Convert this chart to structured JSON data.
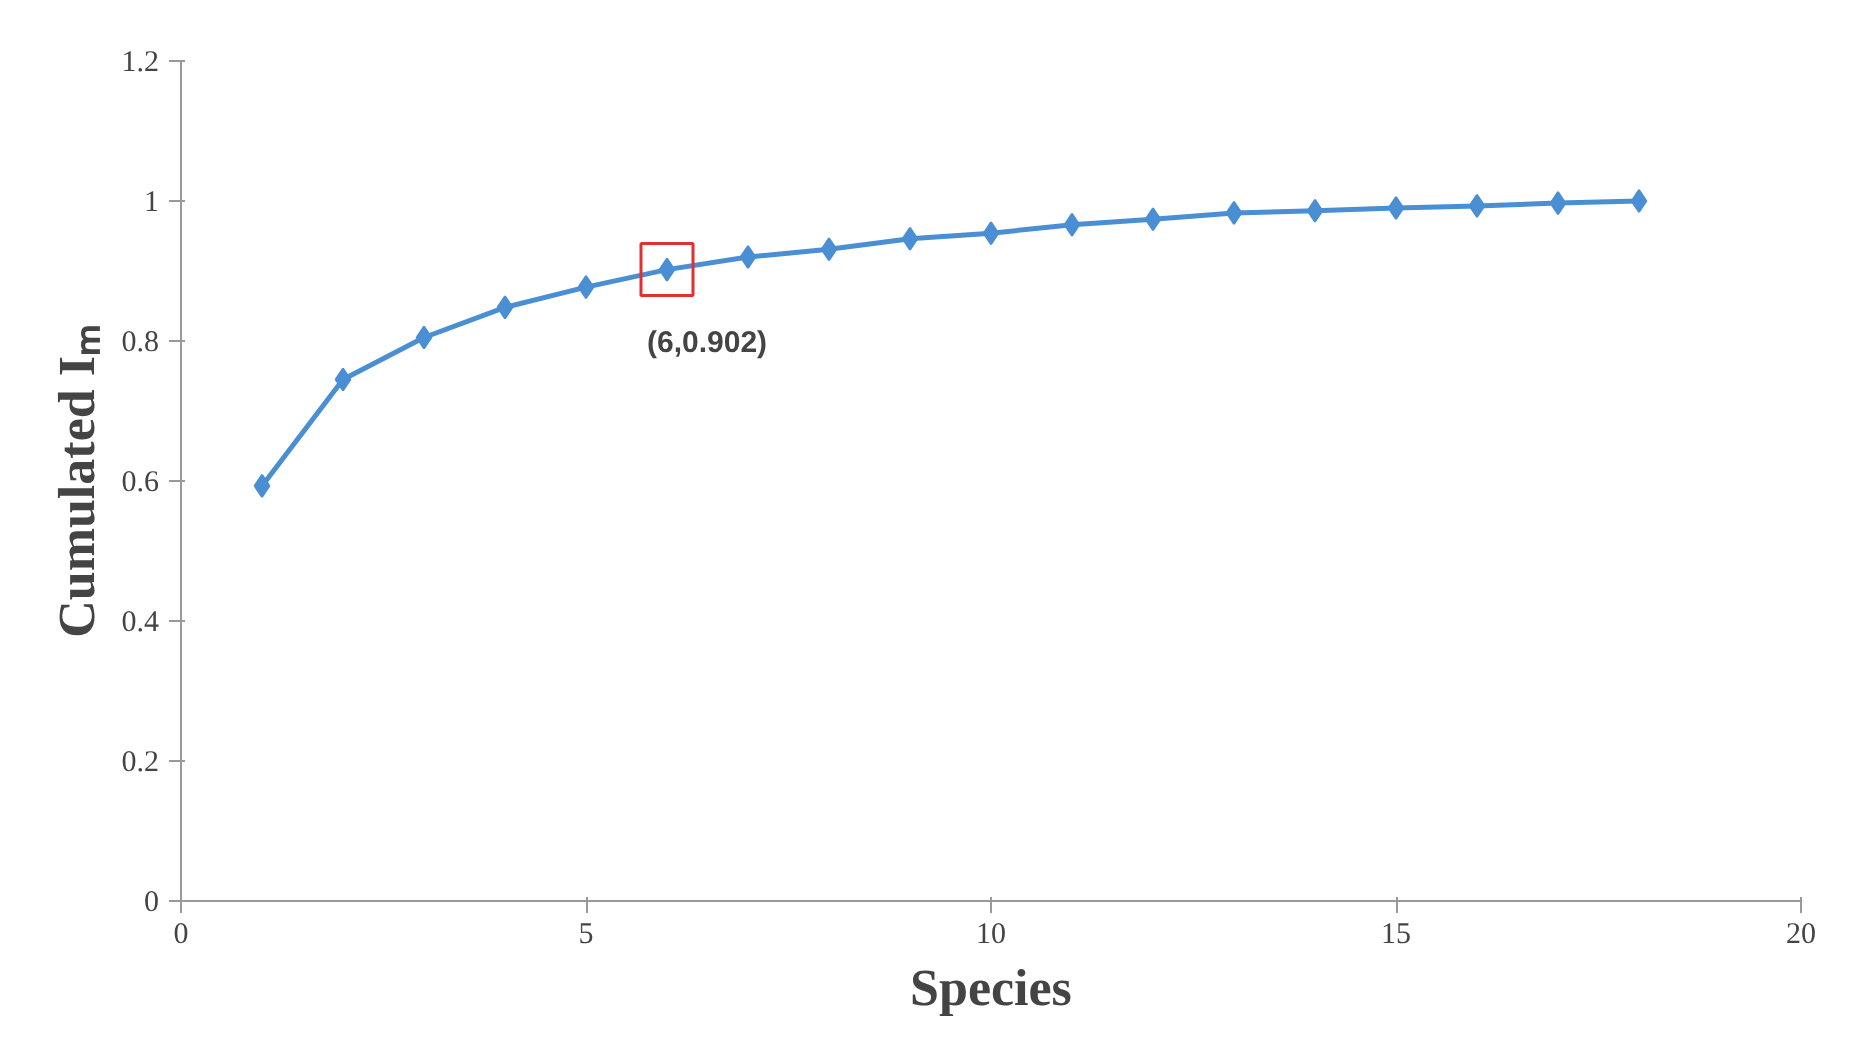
{
  "chart_data": {
    "type": "line",
    "xlabel": "Species",
    "ylabel": "Cumulated Iₘ",
    "x": [
      1,
      2,
      3,
      4,
      5,
      6,
      7,
      8,
      9,
      10,
      11,
      12,
      13,
      14,
      15,
      16,
      17,
      18
    ],
    "series": [
      {
        "color": "#4a8fd4",
        "values": [
          0.593,
          0.745,
          0.805,
          0.848,
          0.877,
          0.902,
          0.92,
          0.931,
          0.946,
          0.954,
          0.966,
          0.974,
          0.983,
          0.986,
          0.99,
          0.993,
          0.997,
          1.0
        ]
      }
    ],
    "marker": "diamond",
    "line_style": "solid",
    "grid": false,
    "xlim": [
      0,
      20
    ],
    "xticks": [
      0,
      5,
      10,
      15,
      20
    ],
    "ylim": [
      0,
      1.2
    ],
    "yticks": [
      0,
      0.2,
      0.4,
      0.6,
      0.8,
      1,
      1.2
    ],
    "annotations": [
      {
        "text": "(6,0.902)",
        "x": 6,
        "y": 0.902
      }
    ]
  }
}
